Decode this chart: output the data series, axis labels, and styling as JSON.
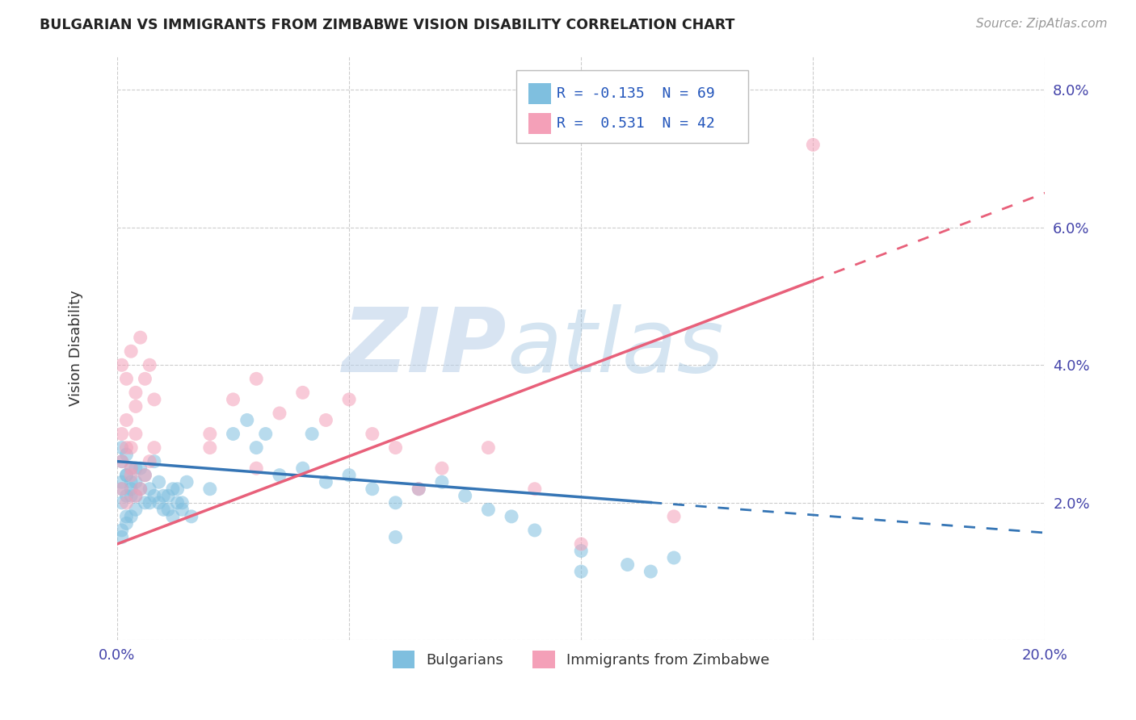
{
  "title": "BULGARIAN VS IMMIGRANTS FROM ZIMBABWE VISION DISABILITY CORRELATION CHART",
  "source": "Source: ZipAtlas.com",
  "ylabel": "Vision Disability",
  "xlim": [
    0.0,
    0.2
  ],
  "ylim": [
    0.0,
    0.085
  ],
  "xtick_pos": [
    0.0,
    0.05,
    0.1,
    0.15,
    0.2
  ],
  "xtick_labels": [
    "0.0%",
    "",
    "",
    "",
    "20.0%"
  ],
  "ytick_pos": [
    0.0,
    0.02,
    0.04,
    0.06,
    0.08
  ],
  "ytick_labels": [
    "",
    "2.0%",
    "4.0%",
    "6.0%",
    "8.0%"
  ],
  "color_bulgarian": "#7fbfdf",
  "color_zimbabwe": "#f4a0b8",
  "color_line_bulgarian": "#3575b5",
  "color_line_zimbabwe": "#e8607a",
  "watermark_zip": "ZIP",
  "watermark_atlas": "atlas",
  "bulgarian_points": [
    [
      0.001,
      0.026
    ],
    [
      0.002,
      0.024
    ],
    [
      0.003,
      0.022
    ],
    [
      0.004,
      0.023
    ],
    [
      0.005,
      0.025
    ],
    [
      0.006,
      0.02
    ],
    [
      0.007,
      0.022
    ],
    [
      0.008,
      0.021
    ],
    [
      0.009,
      0.02
    ],
    [
      0.01,
      0.019
    ],
    [
      0.011,
      0.021
    ],
    [
      0.012,
      0.022
    ],
    [
      0.013,
      0.02
    ],
    [
      0.014,
      0.019
    ],
    [
      0.015,
      0.023
    ],
    [
      0.016,
      0.018
    ],
    [
      0.001,
      0.023
    ],
    [
      0.002,
      0.021
    ],
    [
      0.003,
      0.025
    ],
    [
      0.004,
      0.019
    ],
    [
      0.005,
      0.022
    ],
    [
      0.006,
      0.024
    ],
    [
      0.007,
      0.02
    ],
    [
      0.008,
      0.026
    ],
    [
      0.009,
      0.023
    ],
    [
      0.01,
      0.021
    ],
    [
      0.011,
      0.019
    ],
    [
      0.012,
      0.018
    ],
    [
      0.013,
      0.022
    ],
    [
      0.014,
      0.02
    ],
    [
      0.001,
      0.028
    ],
    [
      0.002,
      0.027
    ],
    [
      0.001,
      0.022
    ],
    [
      0.002,
      0.024
    ],
    [
      0.003,
      0.021
    ],
    [
      0.004,
      0.025
    ],
    [
      0.001,
      0.02
    ],
    [
      0.002,
      0.018
    ],
    [
      0.003,
      0.023
    ],
    [
      0.004,
      0.021
    ],
    [
      0.001,
      0.016
    ],
    [
      0.002,
      0.017
    ],
    [
      0.003,
      0.018
    ],
    [
      0.001,
      0.015
    ],
    [
      0.02,
      0.022
    ],
    [
      0.025,
      0.03
    ],
    [
      0.028,
      0.032
    ],
    [
      0.03,
      0.028
    ],
    [
      0.032,
      0.03
    ],
    [
      0.035,
      0.024
    ],
    [
      0.04,
      0.025
    ],
    [
      0.042,
      0.03
    ],
    [
      0.045,
      0.023
    ],
    [
      0.05,
      0.024
    ],
    [
      0.055,
      0.022
    ],
    [
      0.06,
      0.02
    ],
    [
      0.065,
      0.022
    ],
    [
      0.07,
      0.023
    ],
    [
      0.075,
      0.021
    ],
    [
      0.08,
      0.019
    ],
    [
      0.085,
      0.018
    ],
    [
      0.09,
      0.016
    ],
    [
      0.06,
      0.015
    ],
    [
      0.1,
      0.013
    ],
    [
      0.12,
      0.012
    ],
    [
      0.1,
      0.01
    ],
    [
      0.11,
      0.011
    ],
    [
      0.115,
      0.01
    ]
  ],
  "zimbabwe_points": [
    [
      0.001,
      0.026
    ],
    [
      0.002,
      0.028
    ],
    [
      0.003,
      0.025
    ],
    [
      0.004,
      0.03
    ],
    [
      0.005,
      0.022
    ],
    [
      0.006,
      0.024
    ],
    [
      0.007,
      0.026
    ],
    [
      0.008,
      0.028
    ],
    [
      0.001,
      0.04
    ],
    [
      0.002,
      0.038
    ],
    [
      0.003,
      0.042
    ],
    [
      0.004,
      0.036
    ],
    [
      0.005,
      0.044
    ],
    [
      0.006,
      0.038
    ],
    [
      0.007,
      0.04
    ],
    [
      0.008,
      0.035
    ],
    [
      0.001,
      0.022
    ],
    [
      0.002,
      0.02
    ],
    [
      0.003,
      0.024
    ],
    [
      0.004,
      0.021
    ],
    [
      0.001,
      0.03
    ],
    [
      0.002,
      0.032
    ],
    [
      0.003,
      0.028
    ],
    [
      0.004,
      0.034
    ],
    [
      0.02,
      0.03
    ],
    [
      0.025,
      0.035
    ],
    [
      0.03,
      0.038
    ],
    [
      0.035,
      0.033
    ],
    [
      0.04,
      0.036
    ],
    [
      0.05,
      0.035
    ],
    [
      0.055,
      0.03
    ],
    [
      0.06,
      0.028
    ],
    [
      0.065,
      0.022
    ],
    [
      0.07,
      0.025
    ],
    [
      0.08,
      0.028
    ],
    [
      0.09,
      0.022
    ],
    [
      0.1,
      0.014
    ],
    [
      0.15,
      0.072
    ],
    [
      0.12,
      0.018
    ],
    [
      0.02,
      0.028
    ],
    [
      0.03,
      0.025
    ],
    [
      0.045,
      0.032
    ]
  ],
  "line_bulgarian_x0": 0.0,
  "line_bulgarian_y0": 0.026,
  "line_bulgarian_x1": 0.135,
  "line_bulgarian_y1": 0.019,
  "line_bulgarian_solid_end": 0.115,
  "line_zimbabwe_x0": 0.0,
  "line_zimbabwe_y0": 0.014,
  "line_zimbabwe_x1": 0.2,
  "line_zimbabwe_y1": 0.065,
  "line_zimbabwe_solid_end": 0.15
}
